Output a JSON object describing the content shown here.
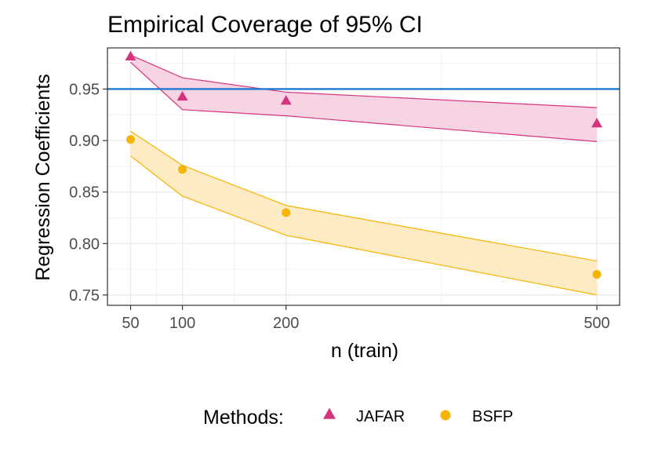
{
  "chart_data": {
    "type": "line",
    "title": "Empirical Coverage of 95% CI",
    "xlabel": "n (train)",
    "ylabel": "Regression Coefficients",
    "x_ticks": [
      50,
      100,
      200,
      500
    ],
    "y_ticks": [
      0.75,
      0.8,
      0.85,
      0.9,
      0.95
    ],
    "y_tick_labels": [
      "0.75",
      "0.80",
      "0.85",
      "0.90",
      "0.95"
    ],
    "xlim": [
      40,
      520
    ],
    "ylim": [
      0.74,
      0.99
    ],
    "reference_line": {
      "y": 0.95,
      "color": "#1f78d1"
    },
    "legend": {
      "title": "Methods:",
      "position": "bottom"
    },
    "series": [
      {
        "name": "JAFAR",
        "marker": "triangle",
        "color": "#d6337f",
        "fill": "#f7d4e3",
        "x": [
          50,
          100,
          200,
          500
        ],
        "values": [
          0.981,
          0.942,
          0.938,
          0.916
        ],
        "lower": [
          0.976,
          0.93,
          0.924,
          0.899
        ],
        "upper": [
          0.983,
          0.961,
          0.947,
          0.932
        ]
      },
      {
        "name": "BSFP",
        "marker": "circle",
        "color": "#f5b400",
        "fill": "#fdebc4",
        "x": [
          50,
          100,
          200,
          500
        ],
        "values": [
          0.901,
          0.872,
          0.83,
          0.77
        ],
        "lower": [
          0.885,
          0.846,
          0.808,
          0.75
        ],
        "upper": [
          0.909,
          0.876,
          0.837,
          0.783
        ]
      }
    ]
  }
}
